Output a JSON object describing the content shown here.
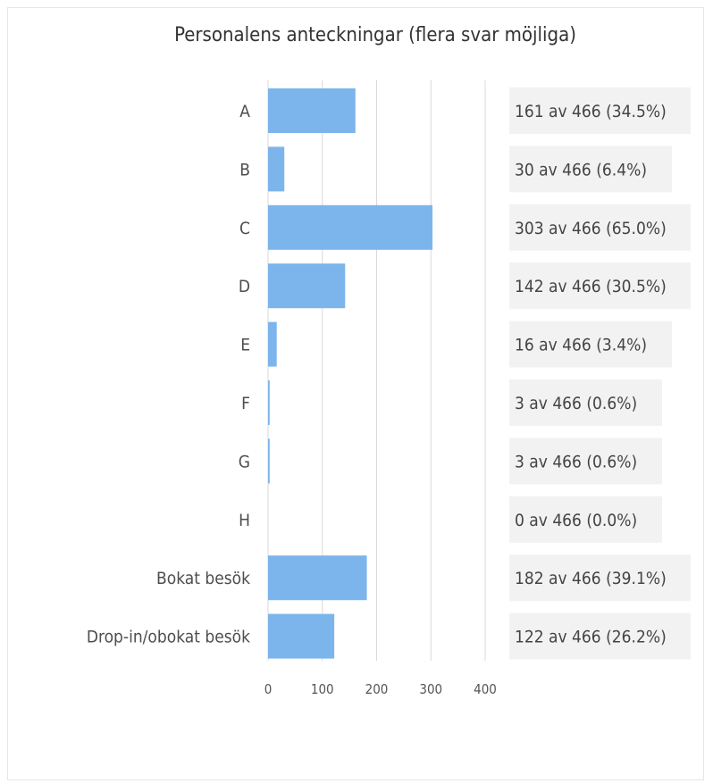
{
  "chart_data": {
    "type": "bar",
    "orientation": "horizontal",
    "title": "Personalens anteckningar (flera svar möjliga)",
    "categories": [
      "A",
      "B",
      "C",
      "D",
      "E",
      "F",
      "G",
      "H",
      "Bokat besök",
      "Drop-in/obokat besök"
    ],
    "values": [
      161,
      30,
      303,
      142,
      16,
      3,
      3,
      0,
      182,
      122
    ],
    "value_labels": [
      "161 av 466 (34.5%)",
      "30 av 466 (6.4%)",
      "303 av 466 (65.0%)",
      "142 av 466 (30.5%)",
      "16 av 466 (3.4%)",
      "3 av 466 (0.6%)",
      "3 av 466 (0.6%)",
      "0 av 466 (0.0%)",
      "182 av 466 (39.1%)",
      "122 av 466 (26.2%)"
    ],
    "x_ticks": [
      0,
      100,
      200,
      300,
      400
    ],
    "xlim": [
      0,
      400
    ],
    "grid": true,
    "colors": {
      "bar": "#7cb5ec",
      "label_bg": "#f2f2f2"
    }
  }
}
